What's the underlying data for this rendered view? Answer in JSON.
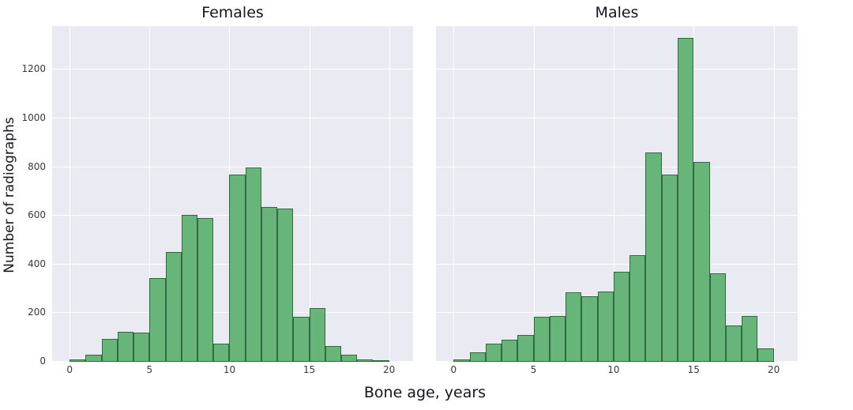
{
  "figure": {
    "xlabel": "Bone age, years",
    "ylabel": "Number of radiographs",
    "colors": {
      "figure_background": "#ffffff",
      "panel_background": "#eaeaf2",
      "bar_fill": "#67b579",
      "bar_edge": "#2e6b3e",
      "grid": "#ffffff",
      "title_text": "#16161f",
      "tick_text": "#3a3a3a"
    }
  },
  "chart_data": [
    {
      "type": "bar",
      "title": "Females",
      "xlabel": "Bone age, years",
      "ylabel": "Number of radiographs",
      "bin_start": 0,
      "bin_width": 1,
      "categories": [
        "0-1",
        "1-2",
        "2-3",
        "3-4",
        "4-5",
        "5-6",
        "6-7",
        "7-8",
        "8-9",
        "9-10",
        "10-11",
        "11-12",
        "12-13",
        "13-14",
        "14-15",
        "15-16",
        "16-17",
        "17-18",
        "18-19",
        "19-20"
      ],
      "values": [
        10,
        30,
        95,
        125,
        120,
        345,
        450,
        605,
        590,
        75,
        770,
        800,
        635,
        630,
        185,
        220,
        65,
        30,
        10,
        5
      ],
      "x_ticks": [
        0,
        5,
        10,
        15,
        20
      ],
      "y_ticks": [
        0,
        200,
        400,
        600,
        800,
        1000,
        1200
      ],
      "xlim": [
        -1.1,
        21.5
      ],
      "ylim": [
        0,
        1380
      ],
      "grid": true,
      "legend": null
    },
    {
      "type": "bar",
      "title": "Males",
      "xlabel": "Bone age, years",
      "ylabel": "Number of radiographs",
      "bin_start": 0,
      "bin_width": 1,
      "categories": [
        "0-1",
        "1-2",
        "2-3",
        "3-4",
        "4-5",
        "5-6",
        "6-7",
        "7-8",
        "8-9",
        "9-10",
        "10-11",
        "11-12",
        "12-13",
        "13-14",
        "14-15",
        "15-16",
        "16-17",
        "17-18",
        "18-19",
        "19-20"
      ],
      "values": [
        10,
        40,
        75,
        90,
        110,
        185,
        190,
        285,
        270,
        290,
        370,
        440,
        860,
        770,
        1330,
        820,
        365,
        150,
        190,
        55
      ],
      "x_ticks": [
        0,
        5,
        10,
        15,
        20
      ],
      "y_ticks": [
        0,
        200,
        400,
        600,
        800,
        1000,
        1200
      ],
      "xlim": [
        -1.1,
        21.5
      ],
      "ylim": [
        0,
        1380
      ],
      "grid": true,
      "legend": null
    }
  ]
}
